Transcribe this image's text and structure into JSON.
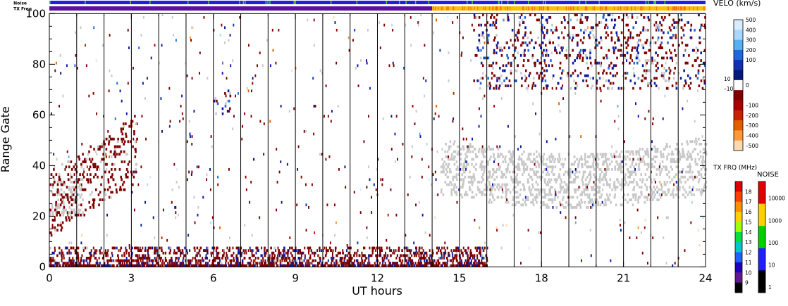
{
  "chart_data": {
    "type": "heatmap",
    "title": "",
    "xlabel": "UT hours",
    "ylabel": "Range Gate",
    "xlim": [
      0,
      24
    ],
    "ylim": [
      0,
      100
    ],
    "x_ticks": [
      "0",
      "3",
      "6",
      "9",
      "12",
      "15",
      "18",
      "21",
      "24"
    ],
    "y_ticks": [
      "0",
      "20",
      "40",
      "60",
      "80",
      "100"
    ],
    "hour_gridlines": true,
    "status_bars": {
      "noise_label": "Noise",
      "txfreq_label": "TX Freq",
      "noise_color": "#2020e0",
      "noise_marker_color": "#40d040",
      "txfreq_segments": [
        {
          "start": 0,
          "end": 14,
          "color": "#5a10a0"
        },
        {
          "start": 14,
          "end": 24,
          "color": "#ffc000"
        }
      ]
    },
    "velocity_scale": {
      "title": "VELO (km/s)",
      "levels": [
        "500",
        "400",
        "300",
        "200",
        "100",
        "10",
        "0",
        "–10",
        "–100",
        "–200",
        "–300",
        "–400",
        "–500"
      ],
      "colors": [
        "#d8ecff",
        "#a8d8ff",
        "#58b0f0",
        "#2068d8",
        "#1030b0",
        "#081878",
        "#ffffff",
        "#800000",
        "#a80000",
        "#c82000",
        "#e06000",
        "#ff9838",
        "#ffd8b0"
      ]
    },
    "txfreq_scale": {
      "title": "TX FRQ (MHz)",
      "levels": [
        "18",
        "17",
        "16",
        "15",
        "14",
        "13",
        "12",
        "11",
        "10",
        "9"
      ],
      "colors": [
        "#e00000",
        "#ff4000",
        "#ff9000",
        "#ffd000",
        "#a0ff00",
        "#00e040",
        "#00c8c8",
        "#2060ff",
        "#2000c0",
        "#601890",
        "#000000"
      ]
    },
    "noise_scale": {
      "title": "NOISE",
      "levels": [
        "10000",
        "1000",
        "100",
        "10",
        "1"
      ],
      "colors": [
        "#e00000",
        "#ffd000",
        "#00d000",
        "#2020ff",
        "#000000"
      ]
    },
    "series": [
      {
        "description": "ground scatter",
        "color": "#c8c8c8"
      },
      {
        "description": "negative velocity echoes",
        "color": "#800000"
      },
      {
        "description": "positive velocity echoes",
        "color": "#0818a0"
      }
    ],
    "regions": [
      {
        "kind": "ground_scatter",
        "t_start": 0,
        "t_end": 1.2,
        "gate_low": 20,
        "gate_high": 35
      },
      {
        "kind": "negative",
        "t_start": 0,
        "t_end": 3.2,
        "gate_low": 22,
        "gate_high": 55
      },
      {
        "kind": "mixed",
        "t_start": 6.0,
        "t_end": 6.6,
        "gate_low": 60,
        "gate_high": 70
      },
      {
        "kind": "ground_scatter",
        "t_start": 14.3,
        "t_end": 24,
        "gate_low": 26,
        "gate_high": 50
      },
      {
        "kind": "mixed",
        "t_start": 15.5,
        "t_end": 24,
        "gate_low": 70,
        "gate_high": 100
      },
      {
        "kind": "negative",
        "t_start": 0,
        "t_end": 16,
        "gate_low": 0,
        "gate_high": 8
      }
    ]
  }
}
